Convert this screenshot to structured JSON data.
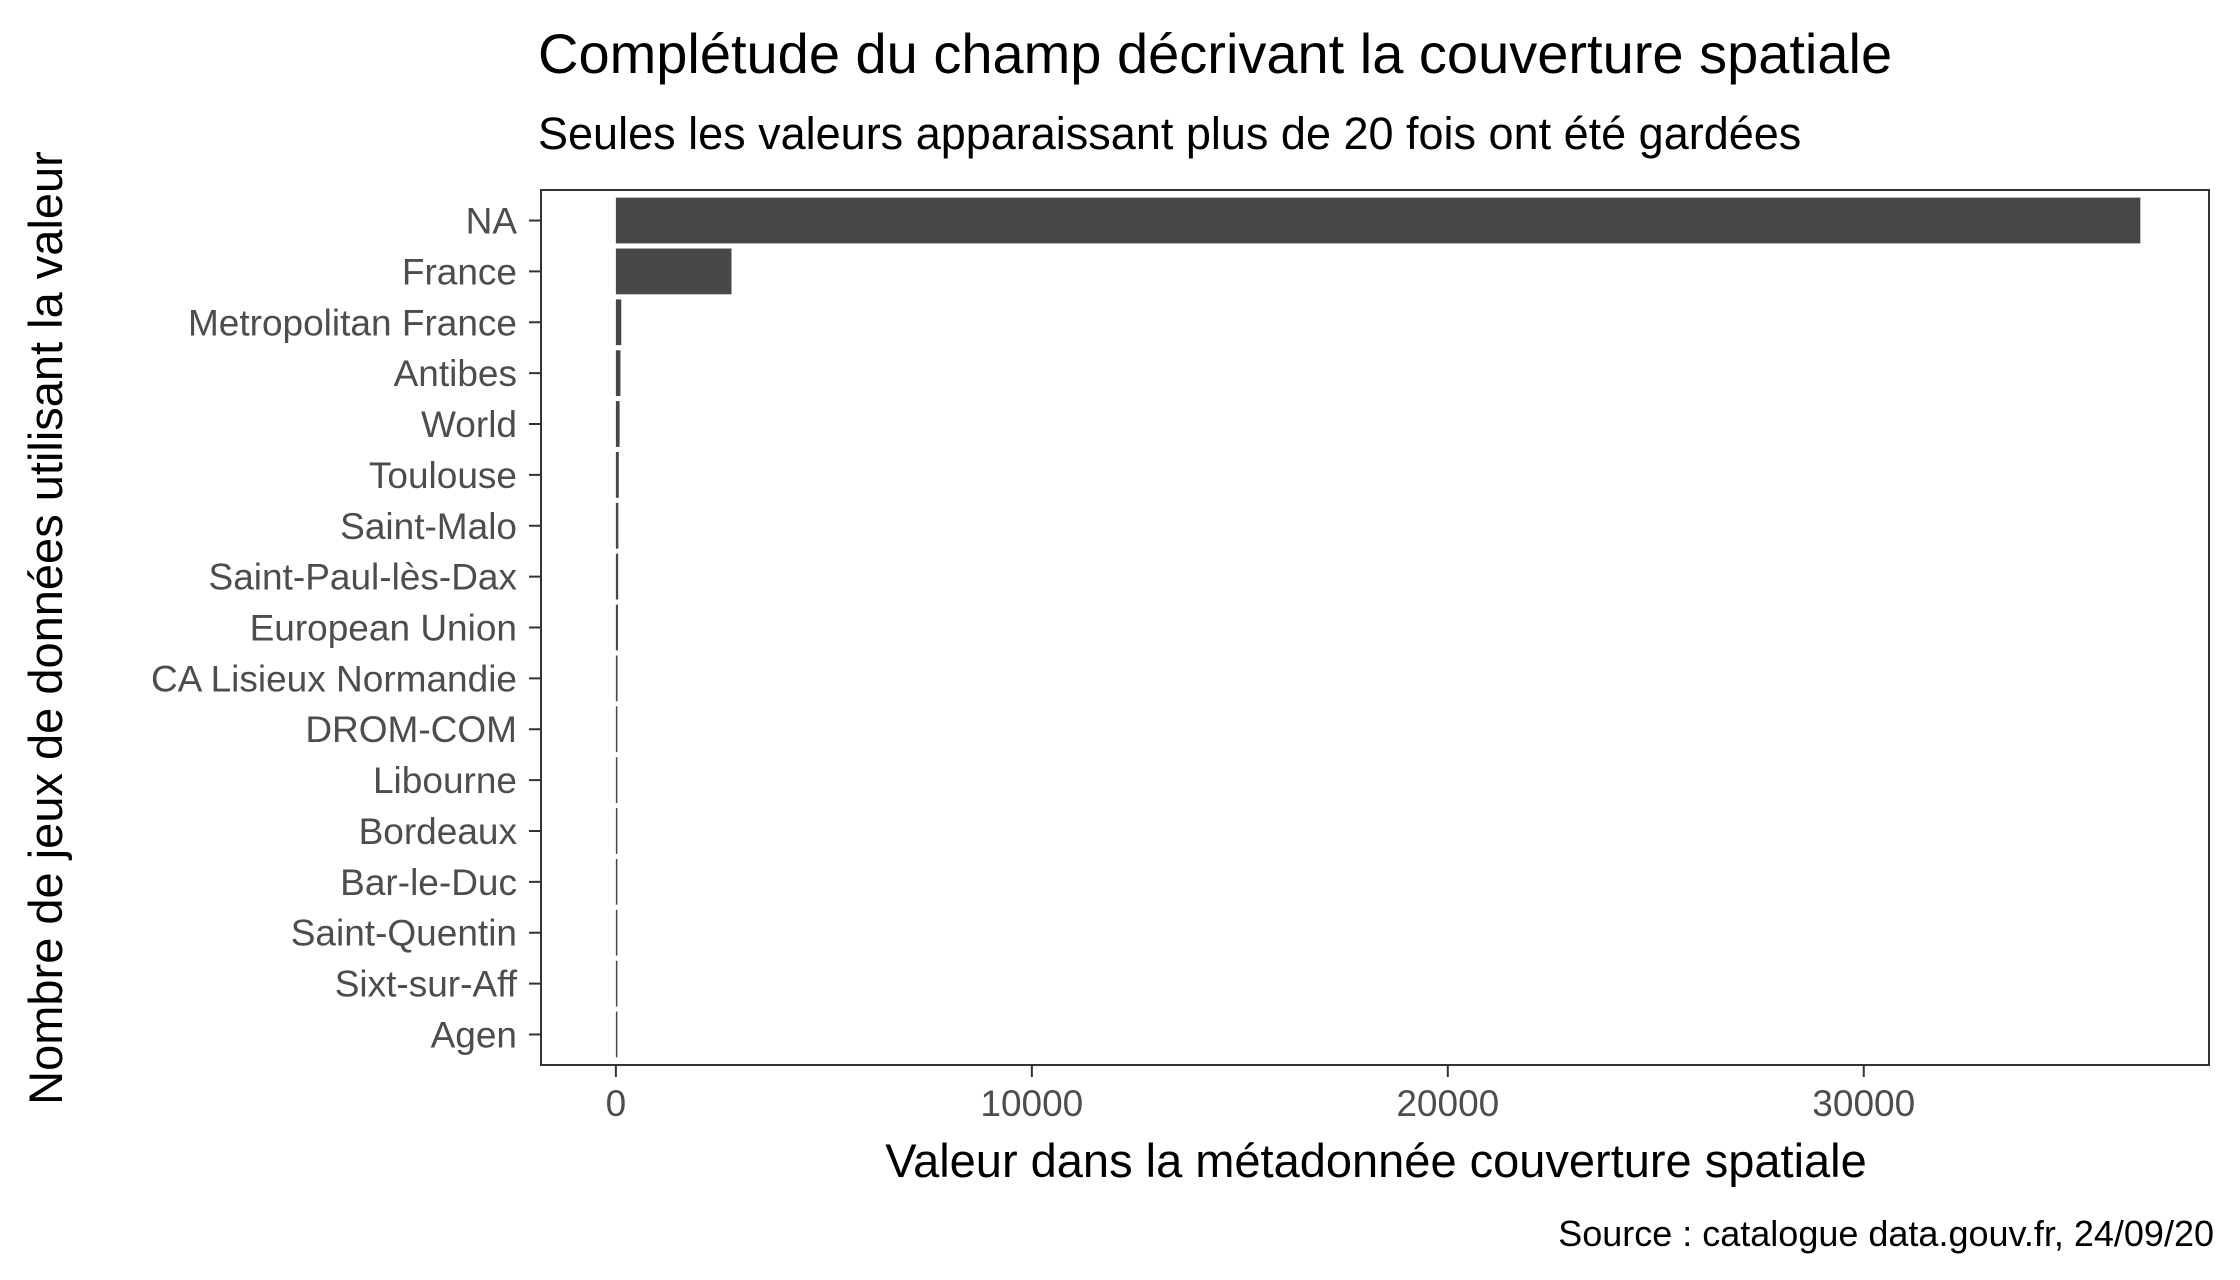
{
  "chart_data": {
    "type": "bar",
    "orientation": "horizontal",
    "title": "Complétude du champ décrivant la couverture spatiale",
    "subtitle": "Seules les valeurs apparaissant plus de 20 fois ont été gardées",
    "xlabel": "Valeur dans la métadonnée couverture spatiale",
    "ylabel": "Nombre de jeux de données utilisant la valeur",
    "caption": "Source : catalogue data.gouv.fr, 24/09/20",
    "categories": [
      "NA",
      "France",
      "Metropolitan France",
      "Antibes",
      "World",
      "Toulouse",
      "Saint-Malo",
      "Saint-Paul-lès-Dax",
      "European Union",
      "CA Lisieux Normandie",
      "DROM-COM",
      "Libourne",
      "Bordeaux",
      "Bar-le-Duc",
      "Saint-Quentin",
      "Sixt-sur-Aff",
      "Agen"
    ],
    "values": [
      36650,
      2780,
      130,
      110,
      90,
      70,
      60,
      55,
      50,
      40,
      35,
      32,
      30,
      28,
      25,
      23,
      21
    ],
    "xlim": [
      -1800,
      38300
    ],
    "xticks": [
      0,
      10000,
      20000,
      30000
    ],
    "xtick_labels": [
      "0",
      "10000",
      "20000",
      "30000"
    ],
    "grid": false,
    "bar_color": "#474747",
    "panel_border_color": "#333333",
    "tick_color": "#333333"
  }
}
